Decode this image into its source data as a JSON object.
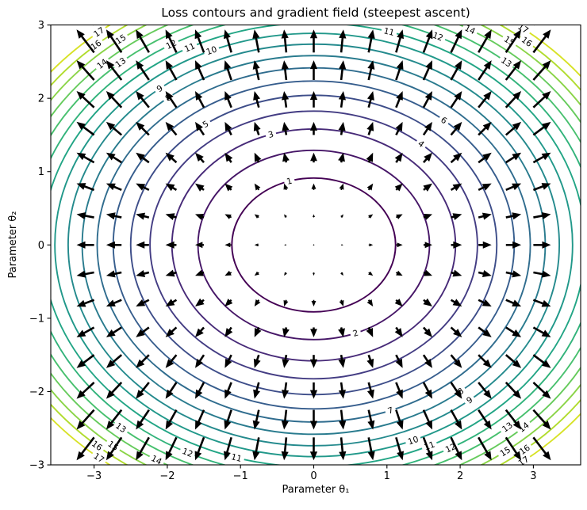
{
  "figure": {
    "title": "Loss contours and gradient field (steepest ascent)"
  },
  "axes": {
    "xlabel": "Parameter θ₁",
    "ylabel": "Parameter θ₂",
    "x_ticks": [
      -3,
      -2,
      -1,
      0,
      1,
      2,
      3
    ],
    "y_ticks": [
      -3,
      -2,
      -1,
      0,
      1,
      2,
      3
    ],
    "xlim": [
      -3.59,
      3.65
    ],
    "ylim": [
      -3.0,
      3.0
    ]
  },
  "chart_data": {
    "type": "contour+quiver",
    "title": "Loss contours and gradient field (steepest ascent)",
    "xlabel": "Parameter θ₁",
    "ylabel": "Parameter θ₂",
    "loss_function": "L(θ1,θ2) = 0.8·θ1² + 1.2·θ2²  (elliptical bowl centered at origin)",
    "coefficients": {
      "a_theta1_sq": 0.8,
      "b_theta2_sq": 1.2
    },
    "contour_levels": [
      1,
      2,
      3,
      4,
      5,
      6,
      7,
      8,
      9,
      10,
      11,
      12,
      13,
      14,
      15,
      16,
      17
    ],
    "contour_colors": [
      "#440154",
      "#461667",
      "#472a78",
      "#433c83",
      "#3d4d89",
      "#365d8d",
      "#2f6c8e",
      "#297b8e",
      "#248a8d",
      "#21988a",
      "#22a585",
      "#32b37b",
      "#47c06e",
      "#66cb5c",
      "#8ad447",
      "#b1dc2e",
      "#d7e226"
    ],
    "contour_linewidth": 1.9,
    "contour_labels": [
      {
        "level": 1,
        "x": -0.34,
        "y": 0.89
      },
      {
        "level": 2,
        "x": 0.56,
        "y": -1.18
      },
      {
        "level": 3,
        "x": -0.59,
        "y": 1.52
      },
      {
        "level": 4,
        "x": 1.48,
        "y": 1.39
      },
      {
        "level": 5,
        "x": -1.48,
        "y": 1.65
      },
      {
        "level": 6,
        "x": 1.79,
        "y": 1.71
      },
      {
        "level": 7,
        "x": 1.04,
        "y": -2.24
      },
      {
        "level": 8,
        "x": -2.03,
        "y": 2.05
      },
      {
        "level": 8,
        "x": 1.98,
        "y": -1.97
      },
      {
        "level": 9,
        "x": -2.13,
        "y": 2.16
      },
      {
        "level": 9,
        "x": 2.09,
        "y": -2.08
      },
      {
        "level": 10,
        "x": -1.4,
        "y": 2.66
      },
      {
        "level": 10,
        "x": 1.35,
        "y": -2.65
      },
      {
        "level": 11,
        "x": -1.68,
        "y": 2.67
      },
      {
        "level": 11,
        "x": 1.03,
        "y": 2.91
      },
      {
        "level": 11,
        "x": -1.05,
        "y": -2.89
      },
      {
        "level": 11,
        "x": 1.58,
        "y": -2.74
      },
      {
        "level": 12,
        "x": -1.95,
        "y": 2.74
      },
      {
        "level": 12,
        "x": 1.7,
        "y": 2.85
      },
      {
        "level": 12,
        "x": -1.71,
        "y": -2.81
      },
      {
        "level": 12,
        "x": 1.87,
        "y": -2.77
      },
      {
        "level": 13,
        "x": -2.65,
        "y": 2.5
      },
      {
        "level": 13,
        "x": 2.64,
        "y": 2.5
      },
      {
        "level": 13,
        "x": -2.62,
        "y": -2.48
      },
      {
        "level": 13,
        "x": 2.63,
        "y": -2.47
      },
      {
        "level": 14,
        "x": -2.9,
        "y": 2.48
      },
      {
        "level": 14,
        "x": 2.13,
        "y": 2.93
      },
      {
        "level": 14,
        "x": -2.13,
        "y": -2.91
      },
      {
        "level": 14,
        "x": 2.84,
        "y": -2.46
      },
      {
        "level": 15,
        "x": -2.63,
        "y": 2.8
      },
      {
        "level": 15,
        "x": 2.69,
        "y": 2.8
      },
      {
        "level": 15,
        "x": -2.71,
        "y": -2.71
      },
      {
        "level": 15,
        "x": 2.59,
        "y": -2.79
      },
      {
        "level": 16,
        "x": -3.03,
        "y": 2.78
      },
      {
        "level": 16,
        "x": 2.95,
        "y": 2.81
      },
      {
        "level": 16,
        "x": -2.95,
        "y": -2.73
      },
      {
        "level": 16,
        "x": 2.87,
        "y": -2.78
      },
      {
        "level": 17,
        "x": -2.89,
        "y": 2.86
      },
      {
        "level": 17,
        "x": 2.85,
        "y": 2.94
      },
      {
        "level": 17,
        "x": -2.93,
        "y": -2.9
      },
      {
        "level": 17,
        "x": 2.84,
        "y": -2.92
      }
    ],
    "quiver": {
      "description": "steepest-ascent arrows, vector = ∇L = (1.6·θ1, 2.4·θ2), tail pivot at grid point",
      "grid": {
        "x_start": -3,
        "x_end": 3,
        "nx": 17,
        "y_start": -3,
        "y_end": 3,
        "ny": 17
      },
      "color": "#000000"
    }
  }
}
